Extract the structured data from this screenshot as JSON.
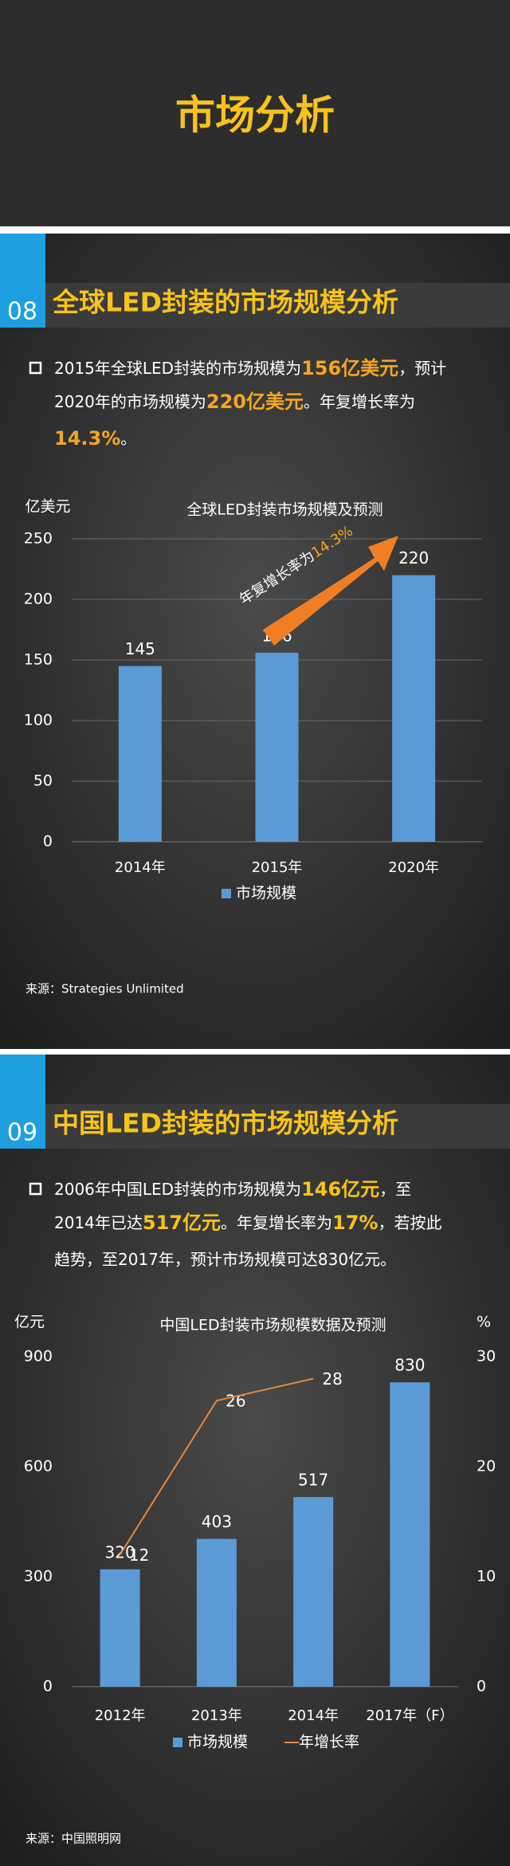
{
  "header": {
    "title": "市场分析"
  },
  "sections": [
    {
      "number": "08",
      "title": "全球LED封装的市场规模分析",
      "lines": [
        [
          {
            "t": "2015年全球LED封装的市场规模为"
          },
          {
            "t": "156亿美元",
            "em": true
          },
          {
            "t": "，预计"
          }
        ],
        [
          {
            "t": "2020年的市场规模为"
          },
          {
            "t": "220亿美元",
            "em": true
          },
          {
            "t": "。年复增长率为"
          }
        ],
        [
          {
            "t": "14.3%",
            "em": true
          },
          {
            "t": "。"
          }
        ]
      ],
      "source": "来源：Strategies Unlimited"
    },
    {
      "number": "09",
      "title": "中国LED封装的市场规模分析",
      "lines": [
        [
          {
            "t": "2006年中国LED封装的市场规模为"
          },
          {
            "t": "146亿元",
            "em": true
          },
          {
            "t": "，至"
          }
        ],
        [
          {
            "t": "2014年已达"
          },
          {
            "t": "517亿元",
            "em": true
          },
          {
            "t": "。年复增长率为"
          },
          {
            "t": "17%",
            "em": true
          },
          {
            "t": "，若按此"
          }
        ],
        [
          {
            "t": "趋势，至2017年，预计市场规模可达830亿元。"
          }
        ]
      ],
      "source": "来源：中国照明网"
    }
  ],
  "chart_data": [
    {
      "type": "bar",
      "title": "全球LED封装市场规模及预测",
      "ylabel": "亿美元",
      "categories": [
        "2014年",
        "2015年",
        "2020年"
      ],
      "series": [
        {
          "name": "市场规模",
          "color": "#5b9bd5",
          "values": [
            145,
            156,
            220
          ]
        }
      ],
      "ylim": [
        0,
        250
      ],
      "yticks": [
        0,
        50,
        100,
        150,
        200,
        250
      ],
      "grid": true,
      "annotation": [
        "年复增长率为",
        "14.3%"
      ]
    },
    {
      "type": "bar_line",
      "title": "中国LED封装市场规模数据及预测",
      "ylabel": "亿元",
      "y2label": "%",
      "categories": [
        "2012年",
        "2013年",
        "2014年",
        "2017年（F）"
      ],
      "series": [
        {
          "name": "市场规模",
          "color": "#5b9bd5",
          "values": [
            320,
            403,
            517,
            830
          ]
        },
        {
          "name": "年增长率",
          "color": "#e8893a",
          "values": [
            12,
            26,
            28,
            null
          ],
          "axis": "y2"
        }
      ],
      "ylim": [
        0,
        900
      ],
      "yticks": [
        0,
        300,
        600,
        900
      ],
      "y2lim": [
        0,
        30
      ],
      "y2ticks": [
        0,
        10,
        20,
        30
      ],
      "grid": false
    }
  ]
}
